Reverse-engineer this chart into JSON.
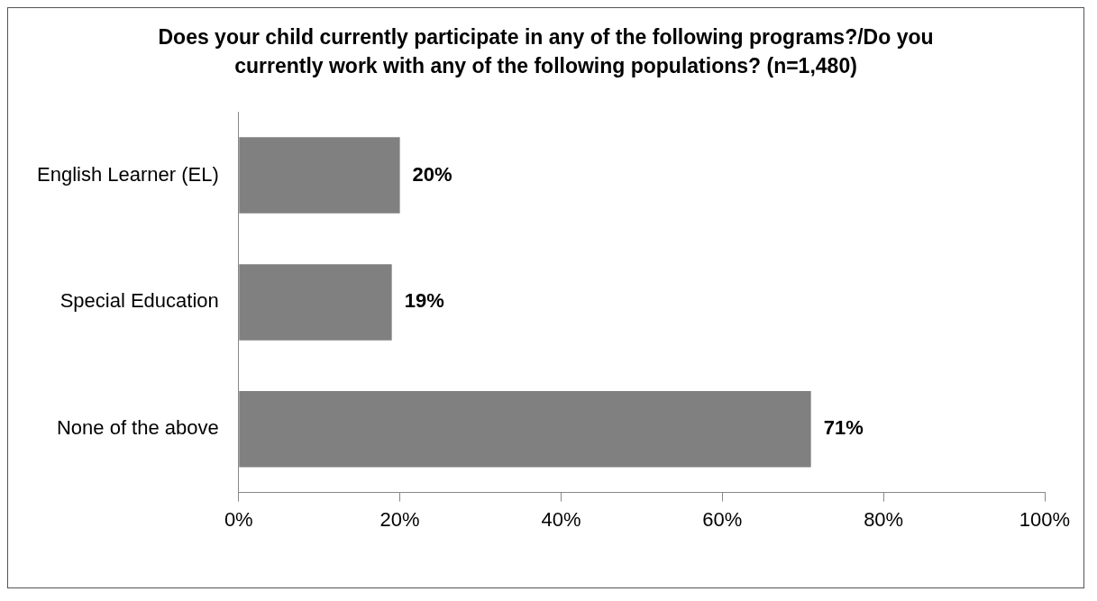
{
  "chart_data": {
    "type": "bar",
    "orientation": "horizontal",
    "title": "Does your child currently participate in any of the following programs?/Do you currently work with any of the following populations? (n=1,480)",
    "categories": [
      "English Learner (EL)",
      "Special Education",
      "None of the above"
    ],
    "values": [
      20,
      19,
      71
    ],
    "value_labels": [
      "20%",
      "19%",
      "71%"
    ],
    "color": "#808080",
    "xlim": [
      0,
      100
    ],
    "xticks": [
      {
        "value": 0,
        "label": "0%"
      },
      {
        "value": 20,
        "label": "20%"
      },
      {
        "value": 40,
        "label": "40%"
      },
      {
        "value": 60,
        "label": "60%"
      },
      {
        "value": 80,
        "label": "80%"
      },
      {
        "value": 100,
        "label": "100%"
      }
    ],
    "grid": false,
    "legend": false
  }
}
